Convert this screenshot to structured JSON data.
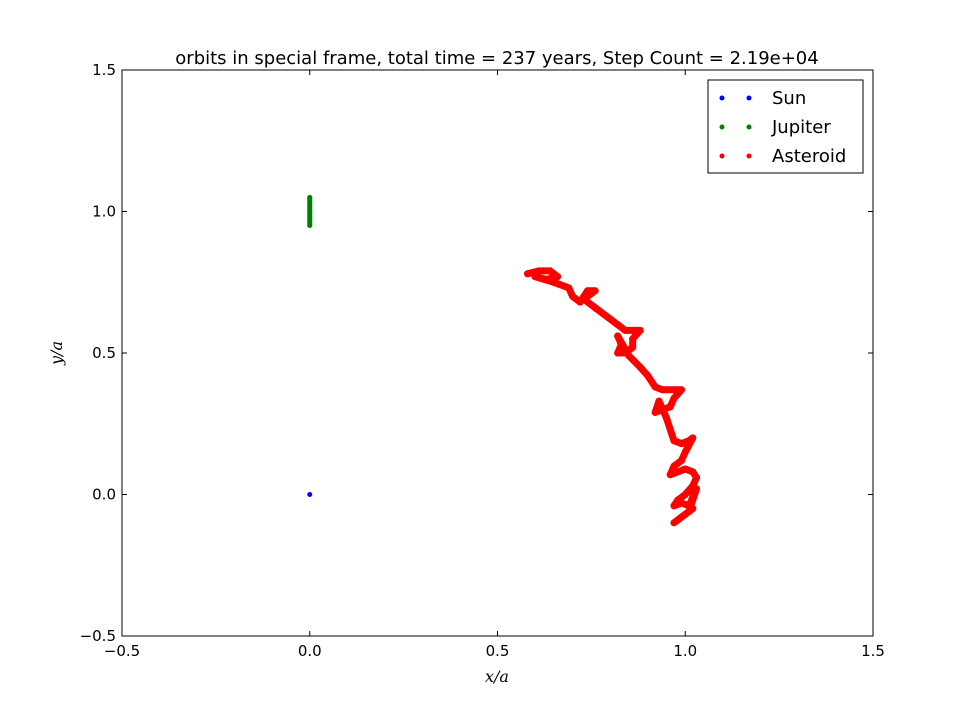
{
  "chart_data": {
    "type": "scatter",
    "title": "orbits in special frame, total time = 237 years, Step Count = 2.19e+04",
    "xlabel": "x/a",
    "ylabel": "y/a",
    "xlim": [
      -0.5,
      1.5
    ],
    "ylim": [
      -0.5,
      1.5
    ],
    "xticks": [
      -0.5,
      0.0,
      0.5,
      1.0,
      1.5
    ],
    "yticks": [
      -0.5,
      0.0,
      0.5,
      1.0,
      1.5
    ],
    "xtick_labels": [
      "−0.5",
      "0.0",
      "0.5",
      "1.0",
      "1.5"
    ],
    "ytick_labels": [
      "−0.5",
      "0.0",
      "0.5",
      "1.0",
      "1.5"
    ],
    "grid": false,
    "legend_position": "top-right",
    "series": [
      {
        "name": "Sun",
        "color": "#0000ff",
        "points": [
          [
            0.0,
            0.0
          ]
        ]
      },
      {
        "name": "Jupiter",
        "color": "#008000",
        "points": [
          [
            0.0,
            0.95
          ],
          [
            0.0,
            0.98
          ],
          [
            0.0,
            1.0
          ],
          [
            0.0,
            1.02
          ],
          [
            0.0,
            1.05
          ]
        ]
      },
      {
        "name": "Asteroid",
        "color": "#ff0000",
        "points": [
          [
            0.58,
            0.78
          ],
          [
            0.61,
            0.79
          ],
          [
            0.64,
            0.79
          ],
          [
            0.66,
            0.77
          ],
          [
            0.63,
            0.76
          ],
          [
            0.6,
            0.77
          ],
          [
            0.65,
            0.75
          ],
          [
            0.69,
            0.73
          ],
          [
            0.7,
            0.7
          ],
          [
            0.72,
            0.68
          ],
          [
            0.74,
            0.72
          ],
          [
            0.76,
            0.72
          ],
          [
            0.73,
            0.69
          ],
          [
            0.76,
            0.66
          ],
          [
            0.79,
            0.63
          ],
          [
            0.82,
            0.6
          ],
          [
            0.84,
            0.58
          ],
          [
            0.86,
            0.58
          ],
          [
            0.88,
            0.58
          ],
          [
            0.86,
            0.55
          ],
          [
            0.86,
            0.52
          ],
          [
            0.84,
            0.5
          ],
          [
            0.82,
            0.5
          ],
          [
            0.83,
            0.53
          ],
          [
            0.82,
            0.56
          ],
          [
            0.85,
            0.49
          ],
          [
            0.88,
            0.45
          ],
          [
            0.9,
            0.42
          ],
          [
            0.92,
            0.38
          ],
          [
            0.94,
            0.37
          ],
          [
            0.97,
            0.37
          ],
          [
            0.99,
            0.37
          ],
          [
            0.97,
            0.34
          ],
          [
            0.96,
            0.31
          ],
          [
            0.94,
            0.3
          ],
          [
            0.92,
            0.29
          ],
          [
            0.93,
            0.33
          ],
          [
            0.95,
            0.27
          ],
          [
            0.96,
            0.23
          ],
          [
            0.97,
            0.19
          ],
          [
            0.99,
            0.18
          ],
          [
            1.01,
            0.19
          ],
          [
            1.02,
            0.2
          ],
          [
            1.0,
            0.15
          ],
          [
            0.99,
            0.12
          ],
          [
            0.97,
            0.1
          ],
          [
            0.96,
            0.07
          ],
          [
            0.98,
            0.08
          ],
          [
            1.0,
            0.09
          ],
          [
            1.02,
            0.08
          ],
          [
            1.03,
            0.06
          ],
          [
            1.02,
            0.03
          ],
          [
            1.0,
            0.0
          ],
          [
            0.98,
            -0.02
          ],
          [
            0.97,
            -0.04
          ],
          [
            0.99,
            -0.03
          ],
          [
            1.01,
            -0.04
          ],
          [
            1.02,
            -0.01
          ],
          [
            1.03,
            0.02
          ],
          [
            1.01,
            -0.06
          ],
          [
            0.99,
            -0.08
          ],
          [
            0.97,
            -0.1
          ],
          [
            1.0,
            -0.07
          ],
          [
            1.02,
            -0.05
          ],
          [
            0.98,
            -0.09
          ]
        ]
      }
    ]
  }
}
